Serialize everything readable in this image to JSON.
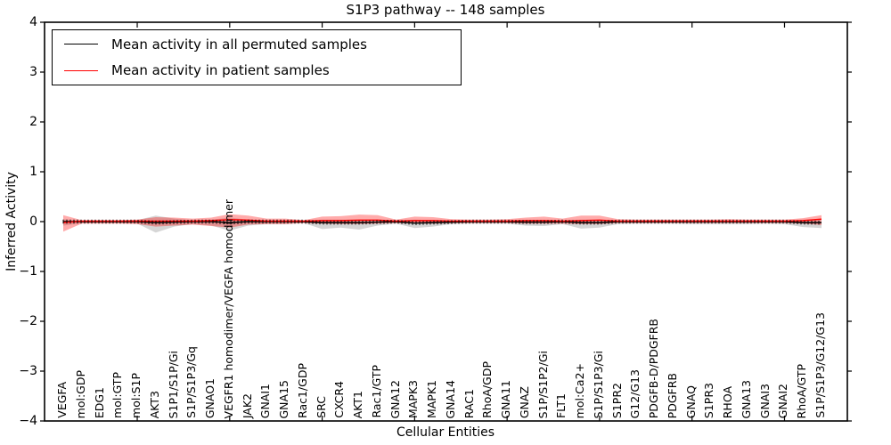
{
  "figure": {
    "title": "S1P3 pathway -- 148 samples",
    "xlabel": "Cellular Entities",
    "ylabel": "Inferred Activity"
  },
  "legend": {
    "entries": [
      {
        "label": "Mean activity in all permuted samples",
        "color": "#000000"
      },
      {
        "label": "Mean activity in patient samples",
        "color": "#ff0000"
      }
    ]
  },
  "chart_data": {
    "type": "line",
    "title": "S1P3 pathway -- 148 samples",
    "xlabel": "Cellular Entities",
    "ylabel": "Inferred Activity",
    "ylim": [
      -4,
      4
    ],
    "yticks": [
      4,
      3,
      2,
      1,
      0,
      -1,
      -2,
      -3,
      -4
    ],
    "xtick_every": 5,
    "grid": false,
    "legend_position": "upper left",
    "categories": [
      "VEGFA",
      "mol:GDP",
      "EDG1",
      "mol:GTP",
      "mol:S1P",
      "AKT3",
      "S1P1/S1P/Gi",
      "S1P/S1P3/Gq",
      "GNAO1",
      "VEGFR1 homodimer/VEGFA homodimer",
      "JAK2",
      "GNAI1",
      "GNA15",
      "Rac1/GDP",
      "SRC",
      "CXCR4",
      "AKT1",
      "Rac1/GTP",
      "GNA12",
      "MAPK3",
      "MAPK1",
      "GNA14",
      "RAC1",
      "RhoA/GDP",
      "GNA11",
      "GNAZ",
      "S1P/S1P2/Gi",
      "FLT1",
      "mol:Ca2+",
      "S1P/S1P3/Gi",
      "S1PR2",
      "G12/G13",
      "PDGFB-D/PDGFRB",
      "PDGFRB",
      "GNAQ",
      "S1PR3",
      "RHOA",
      "GNA13",
      "GNAI3",
      "GNAI2",
      "RhoA/GTP",
      "S1P/S1P3/G12/G13"
    ],
    "series": [
      {
        "name": "Mean activity in all permuted samples",
        "color": "#000000",
        "values": [
          0.0,
          0.0,
          0.0,
          0.0,
          0.0,
          -0.02,
          -0.01,
          0.0,
          0.0,
          -0.02,
          0.0,
          0.0,
          0.0,
          0.0,
          -0.02,
          -0.02,
          -0.02,
          -0.01,
          0.0,
          -0.03,
          -0.02,
          -0.01,
          0.0,
          0.0,
          0.0,
          -0.01,
          -0.01,
          0.0,
          -0.02,
          -0.02,
          0.0,
          0.0,
          0.0,
          0.0,
          0.0,
          0.0,
          0.0,
          0.0,
          0.0,
          0.0,
          -0.02,
          -0.02
        ]
      },
      {
        "name": "Mean activity in patient samples",
        "color": "#ff0000",
        "values": [
          -0.02,
          0.01,
          0.01,
          0.01,
          0.01,
          0.01,
          0.01,
          0.01,
          0.02,
          0.04,
          0.03,
          0.01,
          0.01,
          0.01,
          0.02,
          0.02,
          0.03,
          0.03,
          0.01,
          0.02,
          0.02,
          0.01,
          0.01,
          0.01,
          0.01,
          0.02,
          0.02,
          0.01,
          0.02,
          0.03,
          0.01,
          0.01,
          0.01,
          0.01,
          0.01,
          0.01,
          0.01,
          0.01,
          0.01,
          0.01,
          0.02,
          0.05
        ]
      }
    ],
    "bands": [
      {
        "name": "permuted-samples-range",
        "color": "rgba(0,0,0,0.16)",
        "upper": [
          0.05,
          0.02,
          0.02,
          0.02,
          0.03,
          0.12,
          0.06,
          0.03,
          0.04,
          0.08,
          0.04,
          0.03,
          0.03,
          0.02,
          0.04,
          0.04,
          0.04,
          0.03,
          0.02,
          0.04,
          0.03,
          0.02,
          0.02,
          0.02,
          0.02,
          0.03,
          0.03,
          0.02,
          0.04,
          0.04,
          0.02,
          0.02,
          0.02,
          0.02,
          0.02,
          0.02,
          0.02,
          0.02,
          0.02,
          0.02,
          0.03,
          0.03
        ],
        "lower": [
          -0.08,
          -0.03,
          -0.03,
          -0.03,
          -0.04,
          -0.22,
          -0.1,
          -0.05,
          -0.08,
          -0.18,
          -0.08,
          -0.05,
          -0.05,
          -0.03,
          -0.15,
          -0.12,
          -0.16,
          -0.08,
          -0.04,
          -0.13,
          -0.1,
          -0.05,
          -0.04,
          -0.04,
          -0.04,
          -0.08,
          -0.09,
          -0.05,
          -0.14,
          -0.12,
          -0.05,
          -0.04,
          -0.04,
          -0.04,
          -0.05,
          -0.05,
          -0.05,
          -0.05,
          -0.04,
          -0.05,
          -0.11,
          -0.13
        ]
      },
      {
        "name": "patient-samples-range",
        "color": "rgba(255,0,0,0.33)",
        "upper": [
          0.13,
          0.03,
          0.03,
          0.03,
          0.04,
          0.09,
          0.08,
          0.06,
          0.08,
          0.15,
          0.12,
          0.06,
          0.06,
          0.03,
          0.1,
          0.11,
          0.14,
          0.13,
          0.04,
          0.1,
          0.09,
          0.05,
          0.04,
          0.04,
          0.05,
          0.08,
          0.1,
          0.06,
          0.12,
          0.12,
          0.05,
          0.04,
          0.04,
          0.04,
          0.04,
          0.04,
          0.05,
          0.04,
          0.04,
          0.04,
          0.07,
          0.13
        ],
        "lower": [
          -0.2,
          -0.04,
          -0.04,
          -0.04,
          -0.05,
          -0.1,
          -0.08,
          -0.06,
          -0.09,
          -0.12,
          -0.06,
          -0.05,
          -0.05,
          -0.03,
          -0.04,
          -0.05,
          -0.05,
          -0.04,
          -0.03,
          -0.04,
          -0.04,
          -0.03,
          -0.03,
          -0.03,
          -0.03,
          -0.04,
          -0.04,
          -0.04,
          -0.05,
          -0.05,
          -0.03,
          -0.03,
          -0.03,
          -0.03,
          -0.03,
          -0.03,
          -0.03,
          -0.03,
          -0.03,
          -0.03,
          -0.04,
          -0.07
        ]
      }
    ]
  }
}
